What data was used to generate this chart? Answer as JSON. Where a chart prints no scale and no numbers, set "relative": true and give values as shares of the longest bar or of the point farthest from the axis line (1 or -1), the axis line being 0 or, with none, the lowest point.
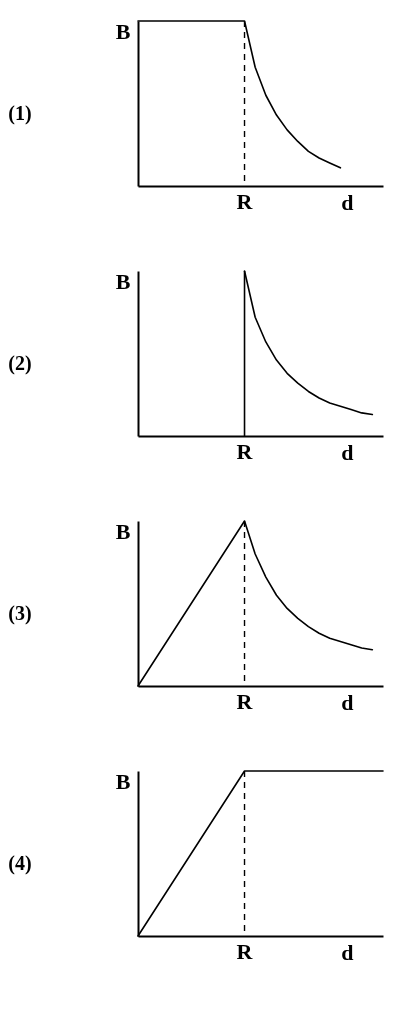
{
  "chart_data": [
    {
      "type": "line",
      "title": "(1)",
      "ylabel": "B",
      "xlabel": "d",
      "relative": true,
      "annotations": [
        "R"
      ],
      "categories": [
        null,
        null,
        null,
        null,
        null,
        null,
        null,
        null,
        null,
        null,
        null,
        null,
        null,
        null,
        null,
        null,
        null,
        null,
        null,
        null,
        null,
        null,
        null,
        null
      ],
      "series": [
        {
          "color": "#000000",
          "values": [
            1,
            1,
            1,
            1,
            1,
            1,
            1,
            1,
            1,
            1,
            1,
            0.72,
            0.55,
            0.43,
            0.34,
            0.27,
            0.21,
            0.17,
            0.14,
            0.11,
            null,
            null,
            null,
            null
          ]
        }
      ]
    },
    {
      "type": "line",
      "title": "(2)",
      "ylabel": "B",
      "xlabel": "d",
      "relative": true,
      "annotations": [
        "R"
      ],
      "categories": [
        null,
        null,
        null,
        null,
        null,
        null,
        null,
        null,
        null,
        null,
        null,
        null,
        null,
        null,
        null,
        null,
        null,
        null,
        null,
        null,
        null,
        null,
        null,
        null
      ],
      "series": [
        {
          "color": "#000000",
          "values": [
            null,
            null,
            null,
            null,
            null,
            null,
            null,
            null,
            null,
            null,
            1,
            0.72,
            0.57,
            0.46,
            0.38,
            0.32,
            0.27,
            0.23,
            0.2,
            0.18,
            0.16,
            0.14,
            0.13,
            null
          ]
        }
      ]
    },
    {
      "type": "line",
      "title": "(3)",
      "ylabel": "B",
      "xlabel": "d",
      "relative": true,
      "annotations": [
        "R"
      ],
      "categories": [
        null,
        null,
        null,
        null,
        null,
        null,
        null,
        null,
        null,
        null,
        null,
        null,
        null,
        null,
        null,
        null,
        null,
        null,
        null,
        null,
        null,
        null,
        null,
        null
      ],
      "series": [
        {
          "color": "#000000",
          "values": [
            0,
            0.1,
            0.2,
            0.3,
            0.4,
            0.5,
            0.6,
            0.7,
            0.8,
            0.9,
            1,
            0.8,
            0.66,
            0.55,
            0.47,
            0.41,
            0.36,
            0.32,
            0.29,
            0.27,
            0.25,
            0.23,
            0.22,
            null
          ]
        }
      ]
    },
    {
      "type": "line",
      "title": "(4)",
      "ylabel": "B",
      "xlabel": "d",
      "relative": true,
      "annotations": [
        "R"
      ],
      "categories": [
        null,
        null,
        null,
        null,
        null,
        null,
        null,
        null,
        null,
        null,
        null,
        null,
        null,
        null,
        null,
        null,
        null,
        null,
        null,
        null,
        null,
        null,
        null,
        null
      ],
      "series": [
        {
          "color": "#000000",
          "values": [
            0,
            0.1,
            0.2,
            0.3,
            0.4,
            0.5,
            0.6,
            0.7,
            0.8,
            0.9,
            1,
            1,
            1,
            1,
            1,
            1,
            1,
            1,
            1,
            1,
            1,
            1,
            1,
            1
          ]
        }
      ]
    }
  ]
}
